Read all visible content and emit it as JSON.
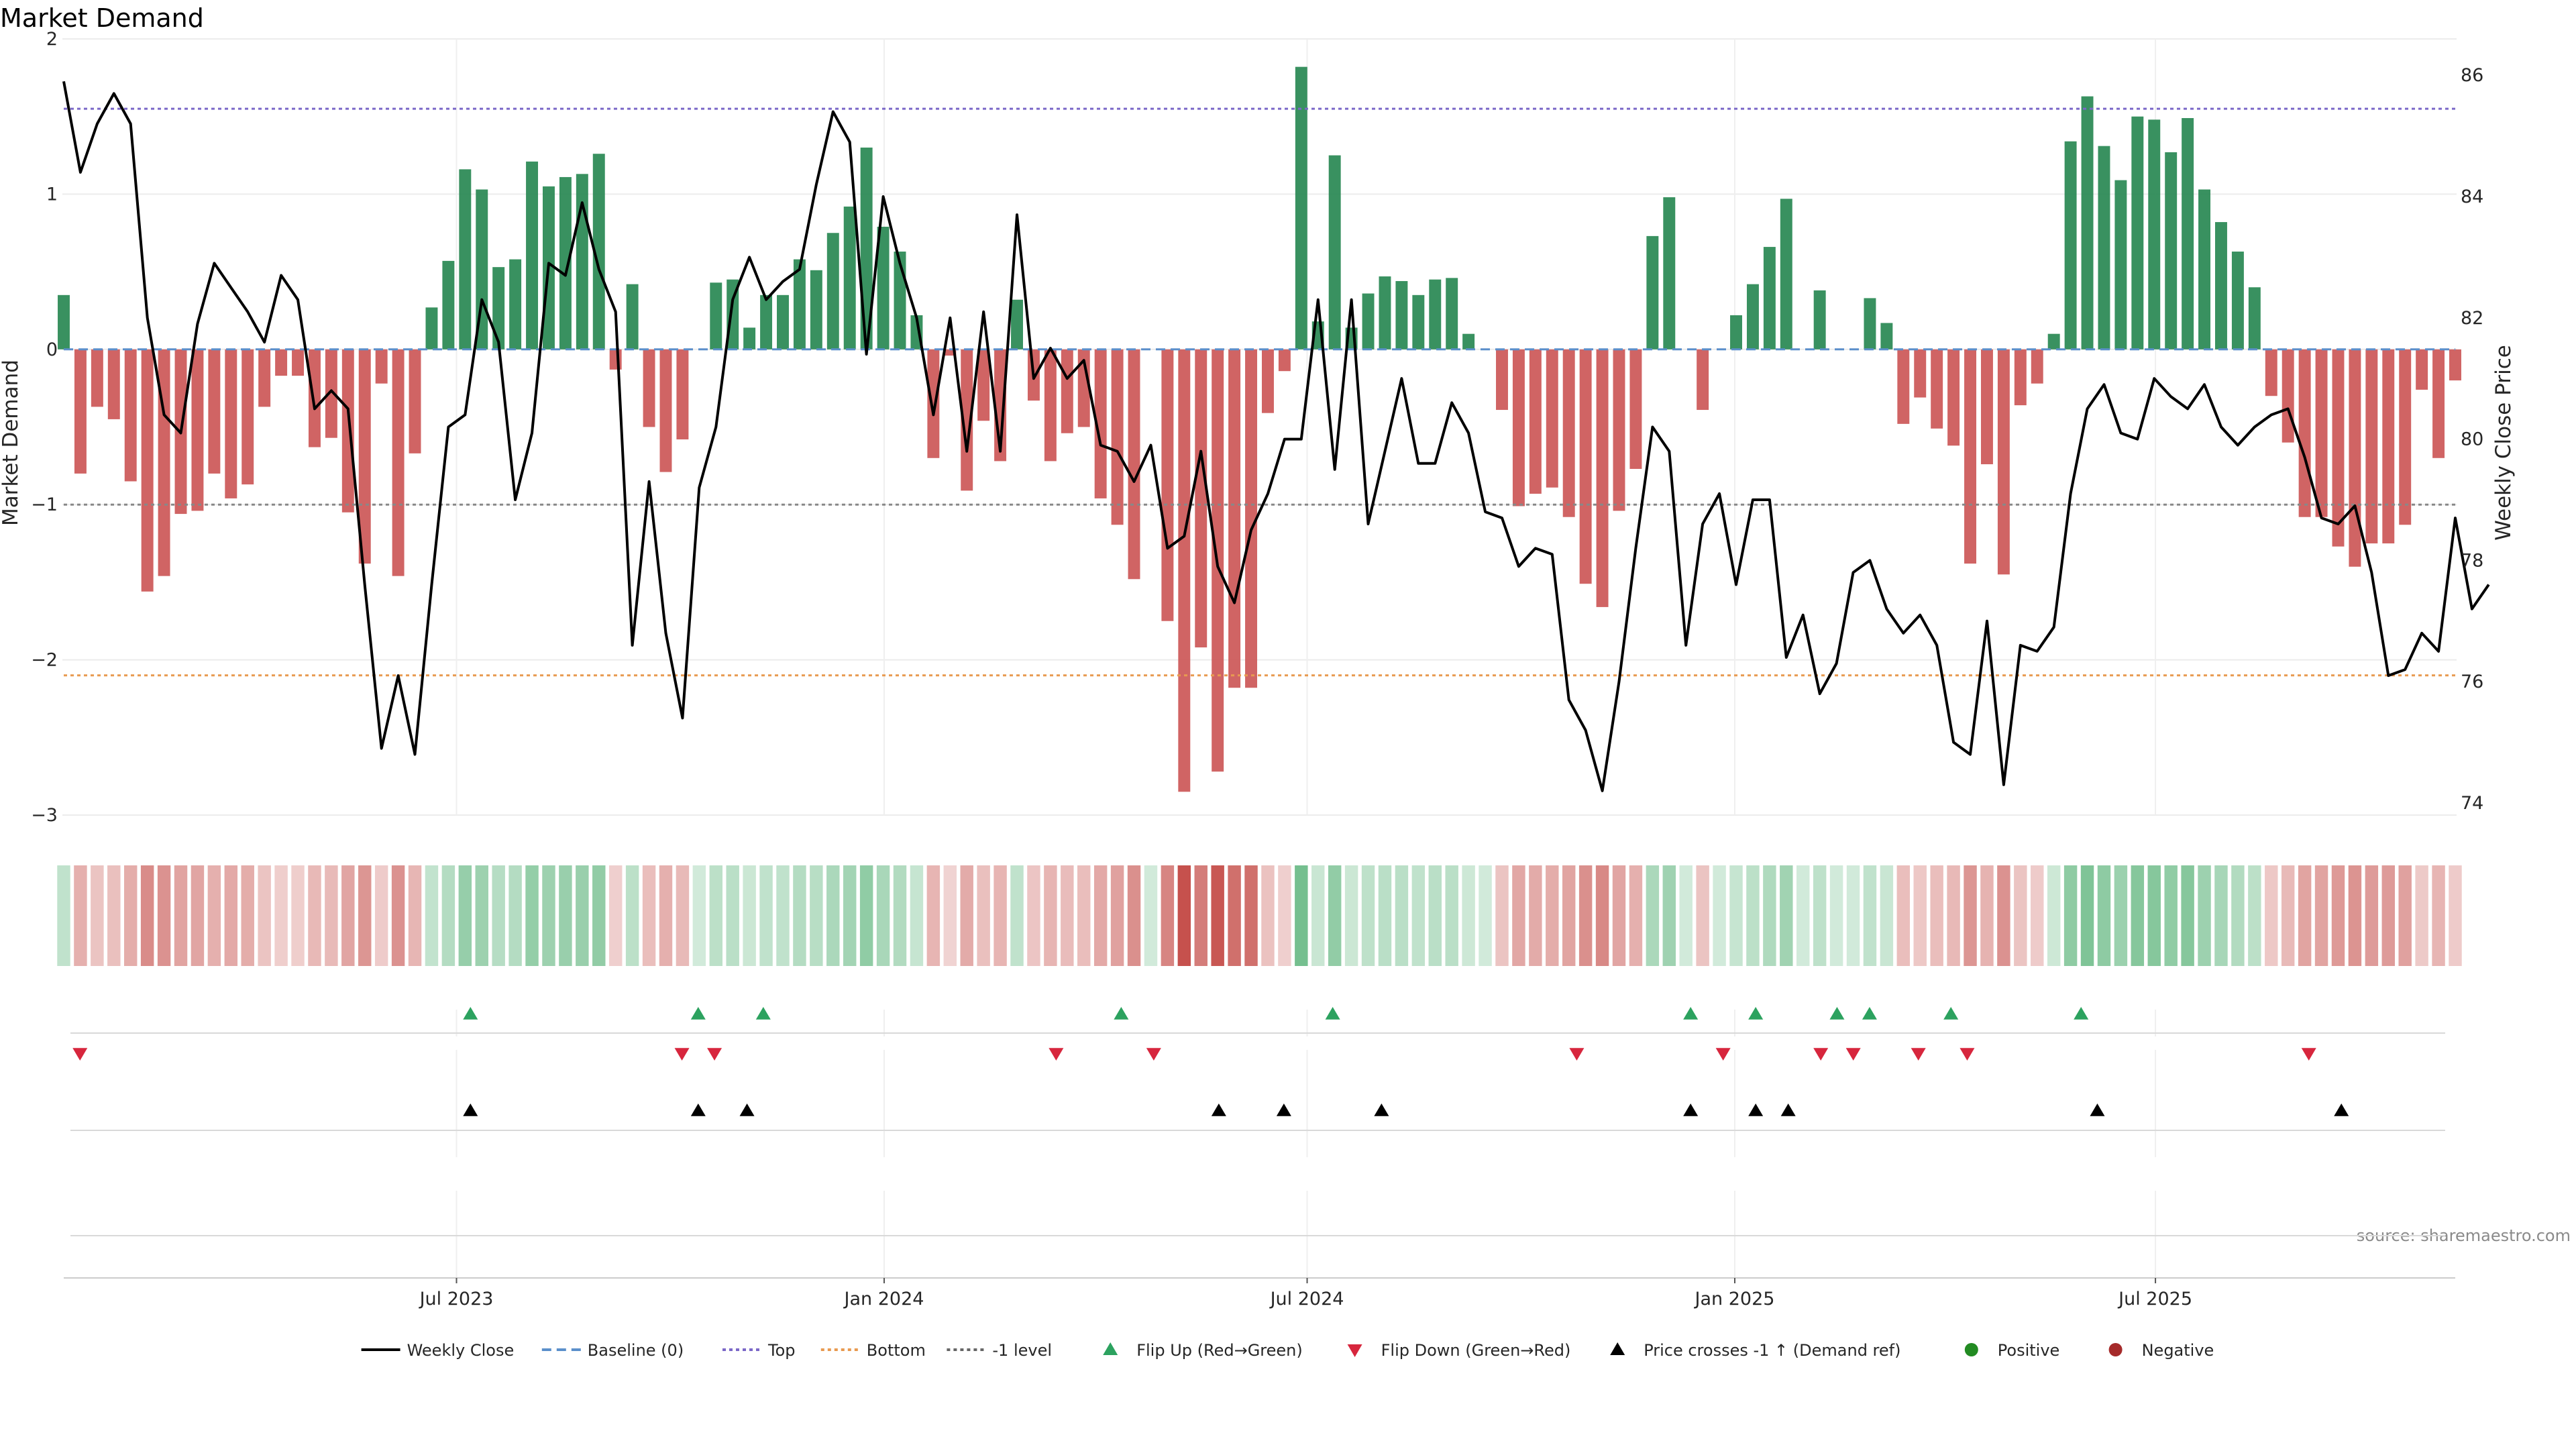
{
  "chart_data": {
    "type": "bar",
    "title": "Market Demand",
    "ylabel": "Market Demand",
    "y2label": "Weekly Close Price",
    "ylim": [
      -3,
      2
    ],
    "y2lim": [
      73.8,
      86.6
    ],
    "yticks": [
      2,
      1,
      0,
      -1,
      -2,
      -3
    ],
    "ytick_labels": [
      "2",
      "1",
      "0",
      "−1",
      "−2",
      "−3"
    ],
    "y2ticks": [
      74,
      76,
      78,
      80,
      82,
      84,
      86
    ],
    "ref_lines": {
      "top": 1.55,
      "bottom": -2.1,
      "minus_one": -1.0
    },
    "x_start": "2023-01-13",
    "x_end": "2025-11-07",
    "xticks": [
      {
        "date": "2023-07-01",
        "label": "Jul 2023"
      },
      {
        "date": "2024-01-01",
        "label": "Jan 2024"
      },
      {
        "date": "2024-07-01",
        "label": "Jul 2024"
      },
      {
        "date": "2025-01-01",
        "label": "Jan 2025"
      },
      {
        "date": "2025-07-01",
        "label": "Jul 2025"
      }
    ],
    "demand": [
      0.35,
      -0.8,
      -0.37,
      -0.45,
      -0.85,
      -1.56,
      -1.46,
      -1.06,
      -1.04,
      -0.8,
      -0.96,
      -0.87,
      -0.37,
      -0.17,
      -0.17,
      -0.63,
      -0.57,
      -1.05,
      -1.38,
      -0.22,
      -1.46,
      -0.67,
      0.27,
      0.57,
      1.16,
      1.03,
      0.53,
      0.58,
      1.21,
      1.05,
      1.11,
      1.13,
      1.26,
      -0.13,
      0.42,
      -0.5,
      -0.79,
      -0.58,
      0.0,
      0.43,
      0.45,
      0.14,
      0.35,
      0.35,
      0.58,
      0.51,
      0.75,
      0.92,
      1.3,
      0.79,
      0.63,
      0.22,
      -0.7,
      -0.04,
      -0.91,
      -0.46,
      -0.72,
      0.32,
      -0.33,
      -0.72,
      -0.54,
      -0.5,
      -0.96,
      -1.13,
      -1.48,
      0.0,
      -1.75,
      -2.85,
      -1.92,
      -2.72,
      -2.18,
      -2.18,
      -0.41,
      -0.14,
      1.82,
      0.18,
      1.25,
      0.14,
      0.36,
      0.47,
      0.44,
      0.35,
      0.45,
      0.46,
      0.1,
      0.0,
      -0.39,
      -1.01,
      -0.93,
      -0.89,
      -1.08,
      -1.51,
      -1.66,
      -1.04,
      -0.77,
      0.73,
      0.98,
      0.0,
      -0.39,
      0.0,
      0.22,
      0.42,
      0.66,
      0.97,
      0.0,
      0.38,
      0.0,
      0.0,
      0.33,
      0.17,
      -0.48,
      -0.31,
      -0.51,
      -0.62,
      -1.38,
      -0.74,
      -1.45,
      -0.36,
      -0.22,
      0.1,
      1.34,
      1.63,
      1.31,
      1.09,
      1.5,
      1.48,
      1.27,
      1.49,
      1.03,
      0.82,
      0.63,
      0.4,
      -0.3,
      -0.6,
      -1.08,
      -1.08,
      -1.27,
      -1.4,
      -1.25,
      -1.25,
      -1.13,
      -0.26,
      -0.7,
      -0.2
    ],
    "price": [
      85.9,
      84.4,
      85.2,
      85.7,
      85.2,
      82.0,
      80.4,
      80.1,
      81.9,
      82.9,
      82.5,
      82.1,
      81.6,
      82.7,
      82.3,
      80.5,
      80.8,
      80.5,
      77.6,
      74.9,
      76.1,
      74.8,
      77.6,
      80.2,
      80.4,
      82.3,
      81.6,
      79.0,
      80.1,
      82.9,
      82.7,
      83.9,
      82.8,
      82.1,
      76.6,
      79.3,
      76.8,
      75.4,
      79.2,
      80.2,
      82.3,
      83.0,
      82.3,
      82.6,
      82.8,
      84.2,
      85.4,
      84.9,
      81.4,
      84.0,
      82.9,
      82.0,
      80.4,
      82.0,
      79.8,
      82.1,
      79.8,
      83.7,
      81.0,
      81.5,
      81.0,
      81.3,
      79.9,
      79.8,
      79.3,
      79.9,
      78.2,
      78.4,
      79.8,
      77.9,
      77.3,
      78.5,
      79.1,
      80.0,
      80.0,
      82.3,
      79.5,
      82.3,
      78.6,
      79.8,
      81.0,
      79.6,
      79.6,
      80.6,
      80.1,
      78.8,
      78.7,
      77.9,
      78.2,
      78.1,
      75.7,
      75.2,
      74.2,
      76.0,
      78.2,
      80.2,
      79.8,
      76.6,
      78.6,
      79.1,
      77.6,
      79.0,
      79.0,
      76.4,
      77.1,
      75.8,
      76.3,
      77.8,
      78.0,
      77.2,
      76.8,
      77.1,
      76.6,
      75.0,
      74.8,
      77.0,
      74.3,
      76.6,
      76.5,
      76.9,
      79.1,
      80.5,
      80.9,
      80.1,
      80.0,
      81.0,
      80.7,
      80.5,
      80.9,
      80.2,
      79.9,
      80.2,
      80.4,
      80.5,
      79.7,
      78.7,
      78.6,
      78.9,
      77.8,
      76.1,
      76.2,
      76.8,
      76.5,
      78.7,
      77.2,
      77.6
    ],
    "flip_up": [
      "2023-07-07",
      "2023-10-13",
      "2023-11-10",
      "2024-04-12",
      "2024-07-12",
      "2024-12-13",
      "2025-01-10",
      "2025-02-14",
      "2025-02-28",
      "2025-04-04",
      "2025-05-30"
    ],
    "flip_down": [
      "2023-01-20",
      "2023-10-06",
      "2023-10-20",
      "2024-03-15",
      "2024-04-26",
      "2024-10-25",
      "2024-12-27",
      "2025-02-07",
      "2025-02-21",
      "2025-03-21",
      "2025-04-11",
      "2025-09-05"
    ],
    "price_cross": [
      "2023-07-07",
      "2023-10-13",
      "2023-11-03",
      "2024-05-24",
      "2024-06-21",
      "2024-08-02",
      "2024-12-13",
      "2025-01-10",
      "2025-01-24",
      "2025-06-06",
      "2025-09-19"
    ],
    "colors": {
      "positive": "#2e8b57",
      "negative": "#cd5c5c",
      "price": "#000000",
      "top": "#7b68c8",
      "bottom": "#e89a50",
      "minus_one": "#888888",
      "baseline": "#5b8fcb",
      "flip_up": "#2ca25f",
      "flip_down": "#d7263d",
      "cross": "#000000",
      "positive_dot": "#228b22",
      "negative_dot": "#a52a2a"
    },
    "legend": [
      {
        "label": "Weekly Close",
        "kind": "line",
        "color": "#000000"
      },
      {
        "label": "Baseline (0)",
        "kind": "dash",
        "color": "#5b8fcb"
      },
      {
        "label": "Top",
        "kind": "dot",
        "color": "#7b68c8"
      },
      {
        "label": "Bottom",
        "kind": "dot",
        "color": "#e89a50"
      },
      {
        "label": "-1 level",
        "kind": "dot",
        "color": "#666666"
      },
      {
        "label": "Flip Up (Red→Green)",
        "kind": "tri-up",
        "color": "#2ca25f"
      },
      {
        "label": "Flip Down (Green→Red)",
        "kind": "tri-down",
        "color": "#d7263d"
      },
      {
        "label": "Price crosses -1 ↑ (Demand ref)",
        "kind": "tri-up",
        "color": "#000000"
      },
      {
        "label": "Positive",
        "kind": "circle",
        "color": "#228b22"
      },
      {
        "label": "Negative",
        "kind": "circle",
        "color": "#a52a2a"
      }
    ],
    "legend_placement": "bottom",
    "source": "source: sharemaestro.com"
  }
}
